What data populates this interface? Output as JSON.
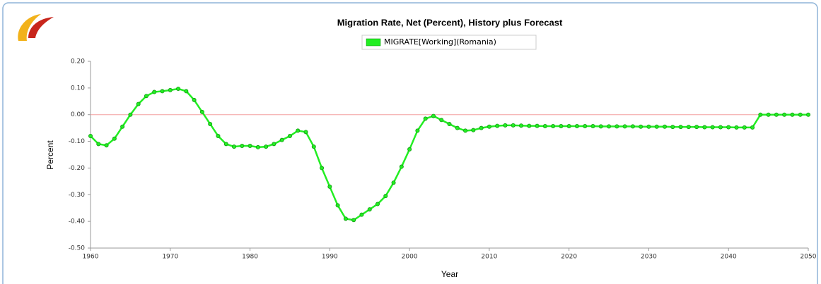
{
  "chart_data": {
    "type": "line",
    "title": "Migration Rate, Net (Percent), History plus Forecast",
    "x_label": "Year",
    "y_label": "Percent",
    "x": [
      1960,
      1961,
      1962,
      1963,
      1964,
      1965,
      1966,
      1967,
      1968,
      1969,
      1970,
      1971,
      1972,
      1973,
      1974,
      1975,
      1976,
      1977,
      1978,
      1979,
      1980,
      1981,
      1982,
      1983,
      1984,
      1985,
      1986,
      1987,
      1988,
      1989,
      1990,
      1991,
      1992,
      1993,
      1994,
      1995,
      1996,
      1997,
      1998,
      1999,
      2000,
      2001,
      2002,
      2003,
      2004,
      2005,
      2006,
      2007,
      2008,
      2009,
      2010,
      2011,
      2012,
      2013,
      2014,
      2015,
      2016,
      2017,
      2018,
      2019,
      2020,
      2021,
      2022,
      2023,
      2024,
      2025,
      2026,
      2027,
      2028,
      2029,
      2030,
      2031,
      2032,
      2033,
      2034,
      2035,
      2036,
      2037,
      2038,
      2039,
      2040,
      2041,
      2042,
      2043,
      2044,
      2045,
      2046,
      2047,
      2048,
      2049,
      2050
    ],
    "series": [
      {
        "name": "MIGRATE[Working](Romania)",
        "color": "#22ee22",
        "values": [
          -0.08,
          -0.11,
          -0.115,
          -0.09,
          -0.045,
          0.0,
          0.04,
          0.07,
          0.085,
          0.088,
          0.092,
          0.097,
          0.088,
          0.055,
          0.01,
          -0.035,
          -0.08,
          -0.11,
          -0.12,
          -0.117,
          -0.117,
          -0.122,
          -0.12,
          -0.11,
          -0.095,
          -0.08,
          -0.06,
          -0.065,
          -0.12,
          -0.2,
          -0.27,
          -0.34,
          -0.39,
          -0.395,
          -0.375,
          -0.355,
          -0.335,
          -0.305,
          -0.255,
          -0.195,
          -0.13,
          -0.06,
          -0.015,
          -0.005,
          -0.02,
          -0.035,
          -0.05,
          -0.06,
          -0.058,
          -0.05,
          -0.045,
          -0.042,
          -0.04,
          -0.04,
          -0.041,
          -0.042,
          -0.042,
          -0.043,
          -0.043,
          -0.043,
          -0.043,
          -0.043,
          -0.043,
          -0.043,
          -0.044,
          -0.044,
          -0.044,
          -0.044,
          -0.044,
          -0.045,
          -0.045,
          -0.045,
          -0.045,
          -0.046,
          -0.046,
          -0.046,
          -0.046,
          -0.047,
          -0.047,
          -0.047,
          -0.047,
          -0.048,
          -0.048,
          -0.048,
          0.0,
          0.0,
          0.0,
          0.0,
          0.0,
          0.0,
          0.0
        ]
      }
    ],
    "xlim": [
      1960,
      2050
    ],
    "xticks": [
      1960,
      1970,
      1980,
      1990,
      2000,
      2010,
      2020,
      2030,
      2040,
      2050
    ],
    "ylim": [
      -0.5,
      0.2
    ],
    "yticks": [
      {
        "value": -0.5,
        "label": "-0.50"
      },
      {
        "value": -0.4,
        "label": "-0.40"
      },
      {
        "value": -0.3,
        "label": "-0.30"
      },
      {
        "value": -0.2,
        "label": "-0.20"
      },
      {
        "value": -0.1,
        "label": "-0.10"
      },
      {
        "value": 0.0,
        "label": "0.00"
      },
      {
        "value": 0.1,
        "label": "0.10"
      },
      {
        "value": 0.2,
        "label": "0.20"
      }
    ],
    "zero_line": true,
    "markers": true,
    "legend": "top"
  }
}
